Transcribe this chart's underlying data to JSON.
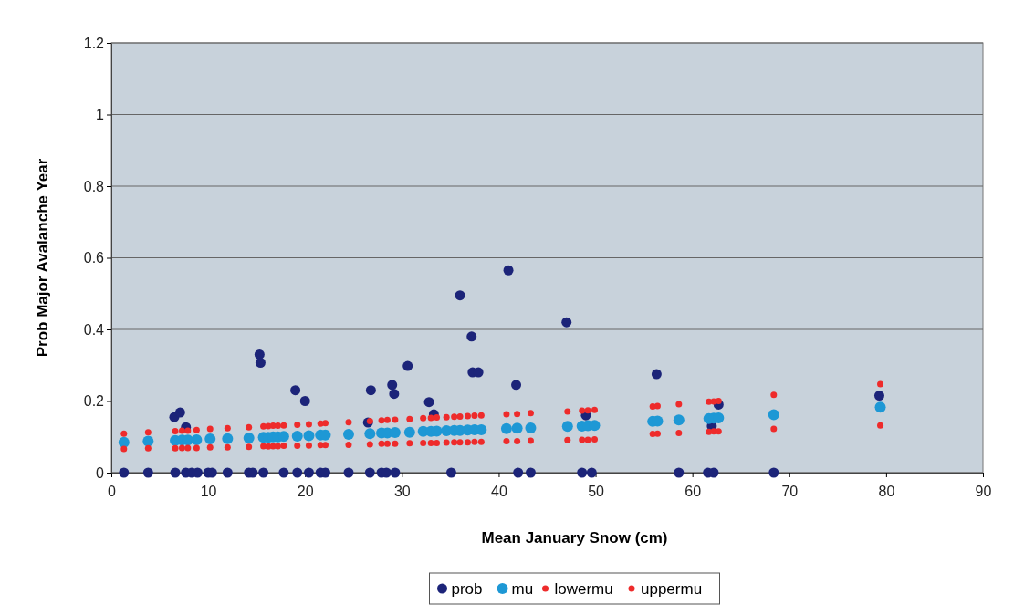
{
  "chart_data": {
    "type": "scatter",
    "xlabel": "Mean January Snow (cm)",
    "ylabel": "Prob Major Avalanche Year",
    "xlim": [
      0,
      90
    ],
    "xticks": [
      0,
      10,
      20,
      30,
      40,
      50,
      60,
      70,
      80,
      90
    ],
    "ylim": [
      0,
      1.2
    ],
    "yticks": [
      0,
      0.2,
      0.4,
      0.6,
      0.8,
      1,
      1.2
    ],
    "grid": "y",
    "legend": "bottom",
    "marker": "circle",
    "series": [
      {
        "name": "prob",
        "color": "#1c2479",
        "x": [
          1.3,
          3.8,
          6.6,
          7.7,
          8.3,
          8.9,
          10,
          10.4,
          12,
          14.2,
          14.6,
          15.7,
          17.8,
          19.2,
          20.4,
          21.6,
          22.1,
          24.5,
          26.7,
          27.9,
          28.4,
          29.3,
          35.1,
          42,
          43.3,
          48.6,
          49.6,
          58.6,
          61.6,
          62.2,
          68.4,
          6.5,
          7.1,
          7.7,
          15.3,
          15.4,
          19,
          20,
          26.5,
          26.8,
          29,
          29.2,
          30.6,
          32.8,
          33.3,
          36,
          37.2,
          37.3,
          37.9,
          41,
          41.8,
          47,
          49,
          56.3,
          62,
          62.7,
          79.3
        ],
        "values": [
          0,
          0,
          0,
          0,
          0,
          0,
          0,
          0,
          0,
          0,
          0,
          0,
          0,
          0,
          0,
          0,
          0,
          0,
          0,
          0,
          0,
          0,
          0,
          0,
          0,
          0,
          0,
          0,
          0,
          0,
          0,
          0.155,
          0.168,
          0.127,
          0.33,
          0.307,
          0.23,
          0.2,
          0.14,
          0.23,
          0.245,
          0.22,
          0.298,
          0.197,
          0.163,
          0.495,
          0.38,
          0.28,
          0.28,
          0.565,
          0.245,
          0.42,
          0.16,
          0.275,
          0.13,
          0.19,
          0.215
        ]
      },
      {
        "name": "mu",
        "color": "#1e98d5",
        "x": [
          1.3,
          3.8,
          6.6,
          7.3,
          7.9,
          8.8,
          10.2,
          12,
          14.2,
          15.7,
          16.2,
          16.7,
          17.2,
          17.8,
          19.2,
          20.4,
          21.6,
          22.1,
          24.5,
          26.7,
          27.9,
          28.5,
          29.3,
          30.8,
          32.2,
          33,
          33.6,
          34.6,
          35.4,
          36,
          36.8,
          37.5,
          38.2,
          40.8,
          41.9,
          43.3,
          47.1,
          48.6,
          49.2,
          49.9,
          55.9,
          56.4,
          58.6,
          61.7,
          62.2,
          62.7,
          68.4,
          79.4
        ],
        "values": [
          0.085,
          0.088,
          0.09,
          0.091,
          0.091,
          0.092,
          0.094,
          0.095,
          0.097,
          0.099,
          0.099,
          0.1,
          0.1,
          0.101,
          0.102,
          0.103,
          0.105,
          0.105,
          0.107,
          0.109,
          0.111,
          0.111,
          0.112,
          0.113,
          0.115,
          0.115,
          0.116,
          0.117,
          0.118,
          0.118,
          0.119,
          0.12,
          0.12,
          0.123,
          0.124,
          0.125,
          0.129,
          0.13,
          0.131,
          0.132,
          0.143,
          0.144,
          0.147,
          0.151,
          0.152,
          0.153,
          0.162,
          0.183
        ]
      },
      {
        "name": "lowermu",
        "color": "#ee2b2b",
        "x": [
          1.3,
          3.8,
          6.6,
          7.3,
          7.9,
          8.8,
          10.2,
          12,
          14.2,
          15.7,
          16.2,
          16.7,
          17.2,
          17.8,
          19.2,
          20.4,
          21.6,
          22.1,
          24.5,
          26.7,
          27.9,
          28.5,
          29.3,
          30.8,
          32.2,
          33,
          33.6,
          34.6,
          35.4,
          36,
          36.8,
          37.5,
          38.2,
          40.8,
          41.9,
          43.3,
          47.1,
          48.6,
          49.2,
          49.9,
          55.9,
          56.4,
          58.6,
          61.7,
          62.2,
          62.7,
          68.4,
          79.4
        ],
        "values": [
          0.066,
          0.068,
          0.068,
          0.069,
          0.069,
          0.069,
          0.071,
          0.071,
          0.072,
          0.074,
          0.073,
          0.074,
          0.074,
          0.075,
          0.075,
          0.076,
          0.077,
          0.077,
          0.078,
          0.079,
          0.081,
          0.081,
          0.081,
          0.082,
          0.083,
          0.083,
          0.083,
          0.084,
          0.085,
          0.085,
          0.085,
          0.086,
          0.086,
          0.088,
          0.088,
          0.089,
          0.091,
          0.092,
          0.092,
          0.093,
          0.108,
          0.109,
          0.111,
          0.114,
          0.115,
          0.115,
          0.122,
          0.132
        ]
      },
      {
        "name": "uppermu",
        "color": "#ee2b2b",
        "x": [
          1.3,
          3.8,
          6.6,
          7.3,
          7.9,
          8.8,
          10.2,
          12,
          14.2,
          15.7,
          16.2,
          16.7,
          17.2,
          17.8,
          19.2,
          20.4,
          21.6,
          22.1,
          24.5,
          26.7,
          27.9,
          28.5,
          29.3,
          30.8,
          32.2,
          33,
          33.6,
          34.6,
          35.4,
          36,
          36.8,
          37.5,
          38.2,
          40.8,
          41.9,
          43.3,
          47.1,
          48.6,
          49.2,
          49.9,
          55.9,
          56.4,
          58.6,
          61.7,
          62.2,
          62.7,
          68.4,
          79.4
        ],
        "values": [
          0.109,
          0.113,
          0.116,
          0.117,
          0.117,
          0.119,
          0.122,
          0.124,
          0.127,
          0.129,
          0.13,
          0.131,
          0.131,
          0.132,
          0.134,
          0.135,
          0.137,
          0.138,
          0.141,
          0.144,
          0.146,
          0.147,
          0.148,
          0.15,
          0.152,
          0.153,
          0.154,
          0.155,
          0.156,
          0.157,
          0.158,
          0.159,
          0.16,
          0.163,
          0.164,
          0.166,
          0.171,
          0.173,
          0.174,
          0.175,
          0.185,
          0.186,
          0.191,
          0.198,
          0.199,
          0.2,
          0.217,
          0.247
        ]
      }
    ]
  }
}
